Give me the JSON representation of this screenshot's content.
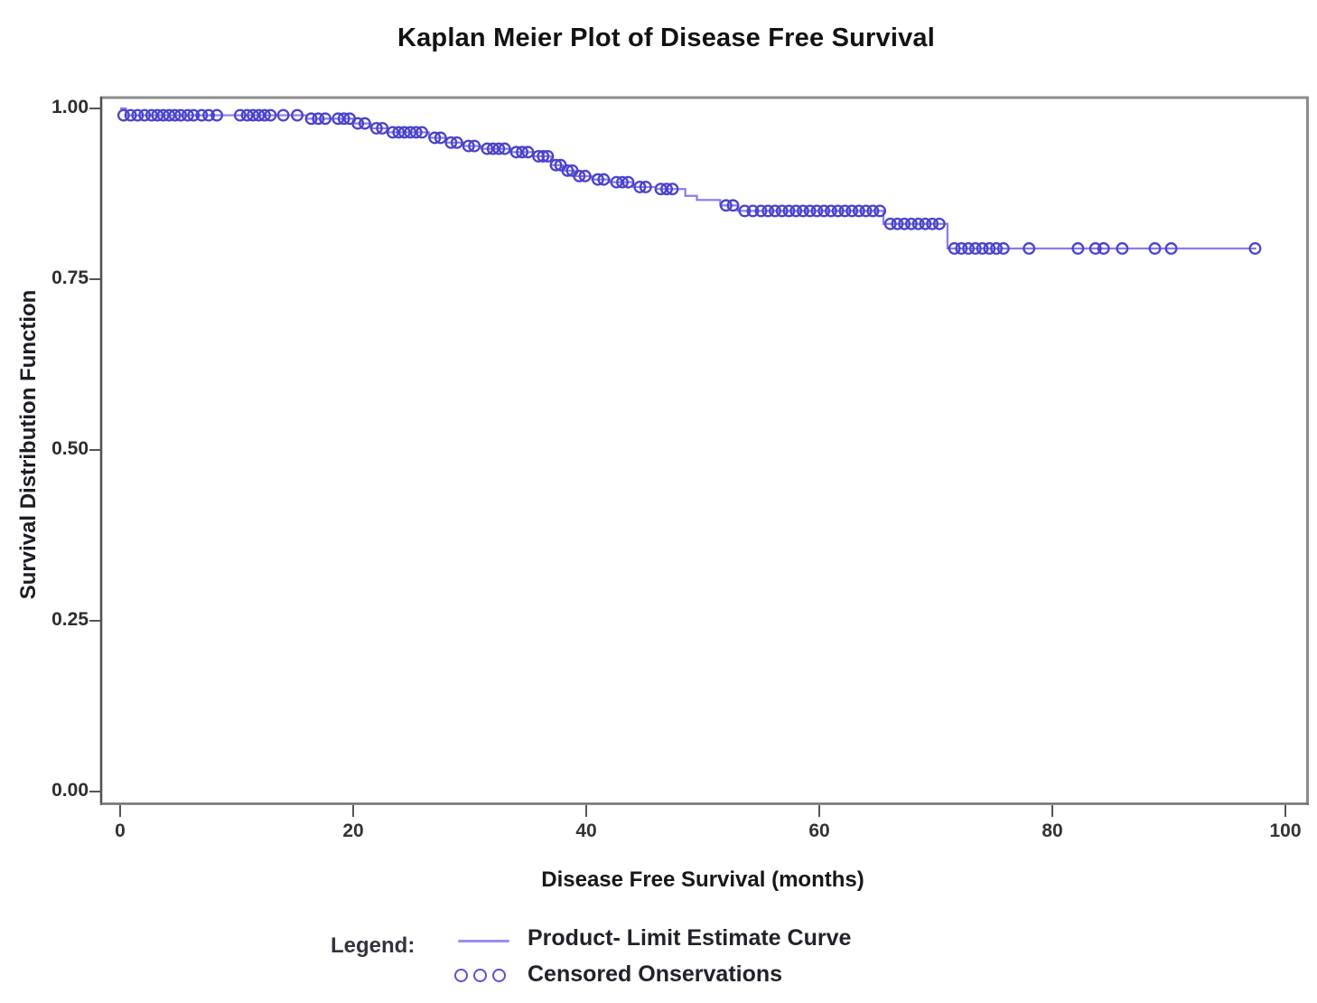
{
  "chart_data": {
    "type": "line",
    "subtype": "kaplan-meier-step",
    "title": "Kaplan Meier Plot of Disease Free Survival",
    "xlabel": "Disease Free Survival (months)",
    "ylabel": "Survival Distribution Function",
    "xlim": [
      0,
      100
    ],
    "ylim": [
      0.0,
      1.0
    ],
    "grid": false,
    "legend_position": "bottom",
    "xticks": [
      0,
      20,
      40,
      60,
      80,
      100
    ],
    "xtick_labels": [
      "0",
      "20",
      "40",
      "60",
      "80",
      "100"
    ],
    "yticks": [
      1.0,
      0.75,
      0.5,
      0.25,
      0.0
    ],
    "ytick_labels": [
      "1.00",
      "0.75",
      "0.50",
      "0.25",
      "0.00"
    ],
    "colors": {
      "line": "#897cec",
      "marker": "#4a43cb"
    },
    "series": [
      {
        "name": "Product- Limit Estimate Curve",
        "points": [
          [
            0,
            1.0
          ],
          [
            0.5,
            0.99
          ],
          [
            16,
            0.985
          ],
          [
            20,
            0.978
          ],
          [
            21.5,
            0.971
          ],
          [
            23,
            0.965
          ],
          [
            26.5,
            0.957
          ],
          [
            28,
            0.95
          ],
          [
            29.5,
            0.945
          ],
          [
            31,
            0.941
          ],
          [
            33.5,
            0.936
          ],
          [
            35.5,
            0.93
          ],
          [
            37,
            0.917
          ],
          [
            38,
            0.909
          ],
          [
            39,
            0.901
          ],
          [
            40.5,
            0.896
          ],
          [
            42,
            0.892
          ],
          [
            44,
            0.885
          ],
          [
            46,
            0.882
          ],
          [
            48.5,
            0.872
          ],
          [
            49.5,
            0.866
          ],
          [
            51.5,
            0.858
          ],
          [
            53,
            0.85
          ],
          [
            65.5,
            0.831
          ],
          [
            71,
            0.795
          ],
          [
            97.5,
            0.795
          ]
        ]
      }
    ],
    "censored_series": {
      "name": "Censored Onservations",
      "points": [
        [
          0.3,
          0.99
        ],
        [
          0.9,
          0.99
        ],
        [
          1.5,
          0.99
        ],
        [
          2.1,
          0.99
        ],
        [
          2.7,
          0.99
        ],
        [
          3.2,
          0.99
        ],
        [
          3.7,
          0.99
        ],
        [
          4.2,
          0.99
        ],
        [
          4.7,
          0.99
        ],
        [
          5.2,
          0.99
        ],
        [
          5.8,
          0.99
        ],
        [
          6.3,
          0.99
        ],
        [
          7.0,
          0.99
        ],
        [
          7.6,
          0.99
        ],
        [
          8.3,
          0.99
        ],
        [
          10.3,
          0.99
        ],
        [
          10.9,
          0.99
        ],
        [
          11.4,
          0.99
        ],
        [
          11.9,
          0.99
        ],
        [
          12.4,
          0.99
        ],
        [
          12.9,
          0.99
        ],
        [
          14.0,
          0.99
        ],
        [
          15.2,
          0.99
        ],
        [
          16.4,
          0.985
        ],
        [
          17.0,
          0.985
        ],
        [
          17.6,
          0.985
        ],
        [
          18.7,
          0.985
        ],
        [
          19.2,
          0.985
        ],
        [
          19.7,
          0.985
        ],
        [
          20.4,
          0.978
        ],
        [
          21.0,
          0.978
        ],
        [
          22.0,
          0.971
        ],
        [
          22.5,
          0.971
        ],
        [
          23.4,
          0.965
        ],
        [
          23.9,
          0.965
        ],
        [
          24.4,
          0.965
        ],
        [
          24.9,
          0.965
        ],
        [
          25.4,
          0.965
        ],
        [
          25.9,
          0.965
        ],
        [
          27.0,
          0.957
        ],
        [
          27.5,
          0.957
        ],
        [
          28.4,
          0.95
        ],
        [
          28.9,
          0.95
        ],
        [
          29.9,
          0.945
        ],
        [
          30.4,
          0.945
        ],
        [
          31.5,
          0.941
        ],
        [
          32.0,
          0.941
        ],
        [
          32.5,
          0.941
        ],
        [
          33.0,
          0.941
        ],
        [
          34.0,
          0.936
        ],
        [
          34.5,
          0.936
        ],
        [
          35.0,
          0.936
        ],
        [
          35.9,
          0.93
        ],
        [
          36.3,
          0.93
        ],
        [
          36.7,
          0.93
        ],
        [
          37.4,
          0.917
        ],
        [
          37.8,
          0.917
        ],
        [
          38.4,
          0.909
        ],
        [
          38.8,
          0.909
        ],
        [
          39.4,
          0.901
        ],
        [
          39.9,
          0.901
        ],
        [
          41.0,
          0.896
        ],
        [
          41.5,
          0.896
        ],
        [
          42.6,
          0.892
        ],
        [
          43.1,
          0.892
        ],
        [
          43.6,
          0.892
        ],
        [
          44.6,
          0.885
        ],
        [
          45.1,
          0.885
        ],
        [
          46.4,
          0.882
        ],
        [
          46.9,
          0.882
        ],
        [
          47.4,
          0.882
        ],
        [
          52.0,
          0.858
        ],
        [
          52.6,
          0.858
        ],
        [
          53.6,
          0.85
        ],
        [
          54.3,
          0.85
        ],
        [
          55.0,
          0.85
        ],
        [
          55.6,
          0.85
        ],
        [
          56.2,
          0.85
        ],
        [
          56.8,
          0.85
        ],
        [
          57.4,
          0.85
        ],
        [
          58.0,
          0.85
        ],
        [
          58.6,
          0.85
        ],
        [
          59.2,
          0.85
        ],
        [
          59.8,
          0.85
        ],
        [
          60.4,
          0.85
        ],
        [
          61.0,
          0.85
        ],
        [
          61.6,
          0.85
        ],
        [
          62.2,
          0.85
        ],
        [
          62.8,
          0.85
        ],
        [
          63.4,
          0.85
        ],
        [
          64.0,
          0.85
        ],
        [
          64.6,
          0.85
        ],
        [
          65.2,
          0.85
        ],
        [
          66.1,
          0.831
        ],
        [
          66.7,
          0.831
        ],
        [
          67.3,
          0.831
        ],
        [
          67.9,
          0.831
        ],
        [
          68.5,
          0.831
        ],
        [
          69.1,
          0.831
        ],
        [
          69.7,
          0.831
        ],
        [
          70.3,
          0.831
        ],
        [
          71.6,
          0.795
        ],
        [
          72.2,
          0.795
        ],
        [
          72.8,
          0.795
        ],
        [
          73.4,
          0.795
        ],
        [
          74.0,
          0.795
        ],
        [
          74.6,
          0.795
        ],
        [
          75.2,
          0.795
        ],
        [
          75.8,
          0.795
        ],
        [
          78.0,
          0.795
        ],
        [
          82.2,
          0.795
        ],
        [
          83.7,
          0.795
        ],
        [
          84.4,
          0.795
        ],
        [
          86.0,
          0.795
        ],
        [
          88.8,
          0.795
        ],
        [
          90.2,
          0.795
        ],
        [
          97.4,
          0.795
        ]
      ]
    }
  },
  "legend": {
    "label": "Legend:",
    "items": [
      {
        "swatch": "line",
        "label": "Product- Limit Estimate Curve"
      },
      {
        "swatch": "circles",
        "label": "Censored Onservations"
      }
    ]
  }
}
